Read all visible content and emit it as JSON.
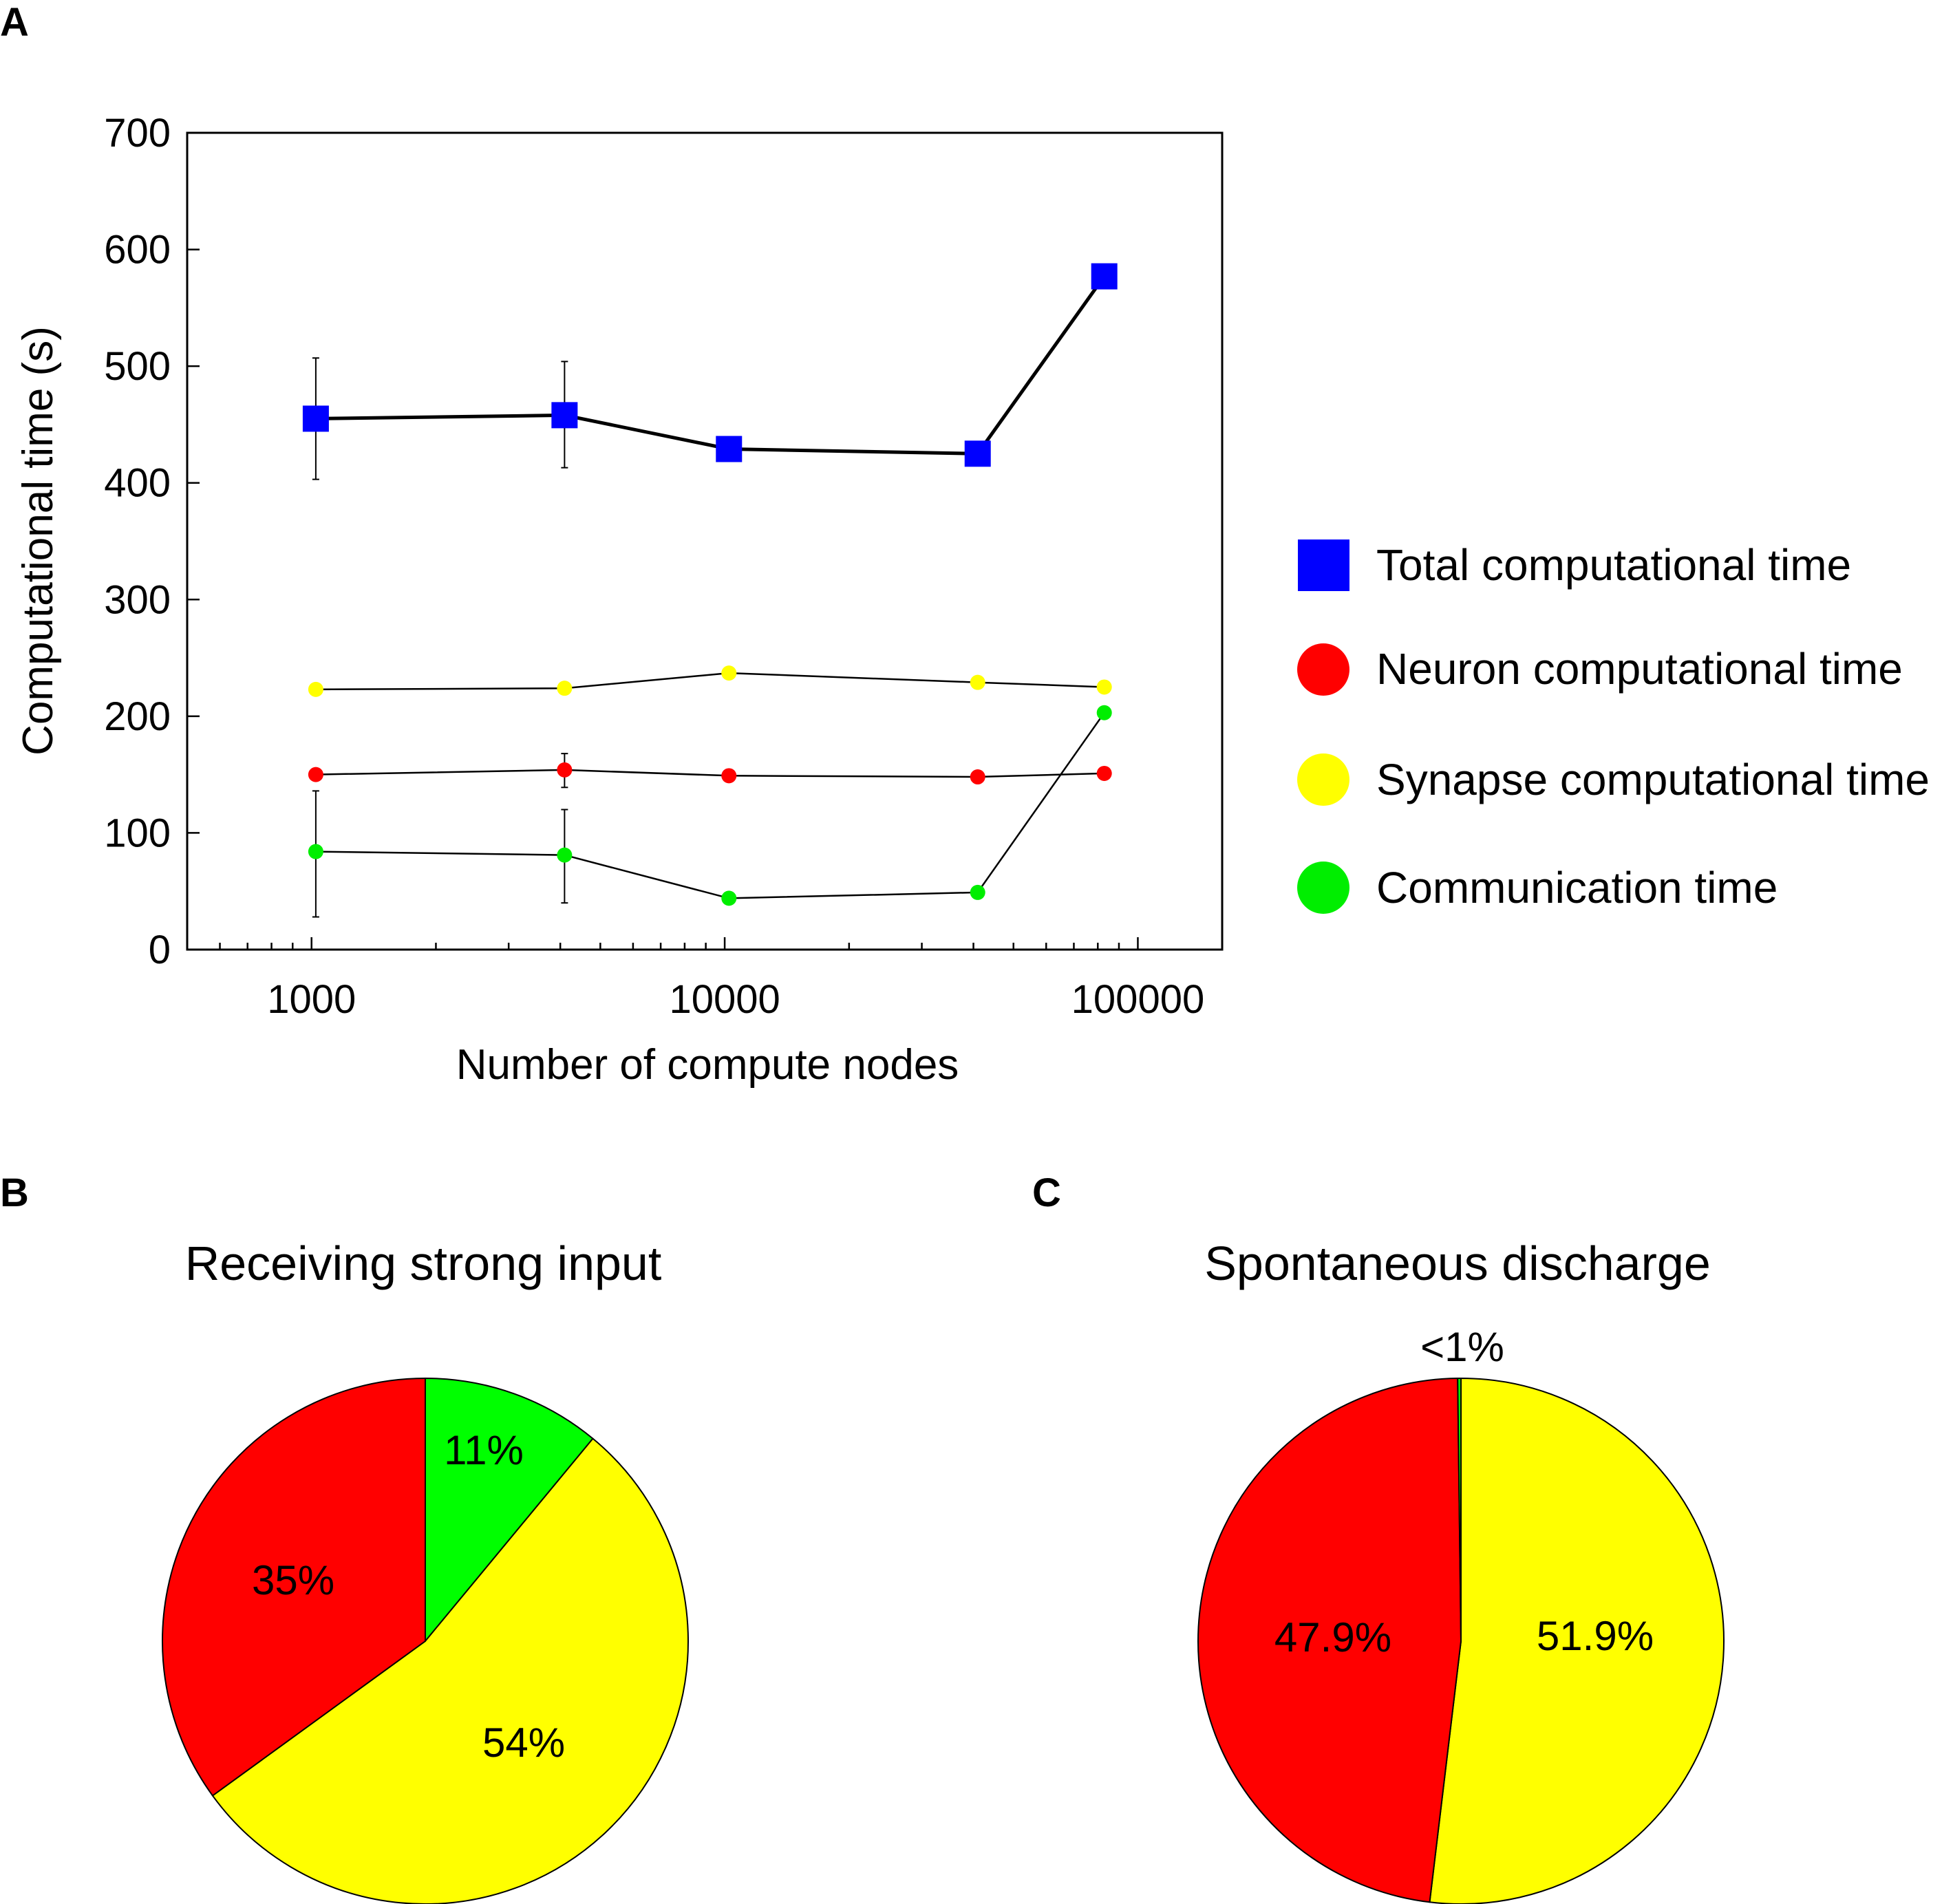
{
  "chart_data": [
    {
      "panel": "A",
      "type": "line",
      "title": "",
      "xlabel": "Number of compute nodes",
      "ylabel": "Computational time (s)",
      "xscale": "log",
      "xlim": [
        500,
        160000
      ],
      "ylim": [
        0,
        700
      ],
      "grid": false,
      "legend_position": "right",
      "xticks": [
        {
          "value": 1000,
          "label": "1000"
        },
        {
          "value": 10000,
          "label": "10000"
        },
        {
          "value": 100000,
          "label": "100000"
        }
      ],
      "yticks": [
        {
          "value": 0,
          "label": "0"
        },
        {
          "value": 100,
          "label": "100"
        },
        {
          "value": 200,
          "label": "200"
        },
        {
          "value": 300,
          "label": "300"
        },
        {
          "value": 400,
          "label": "400"
        },
        {
          "value": 500,
          "label": "500"
        },
        {
          "value": 600,
          "label": "600"
        },
        {
          "value": 700,
          "label": "700"
        }
      ],
      "x": [
        1024,
        4096,
        10240,
        40960,
        82944
      ],
      "series": [
        {
          "name": "Total computational time",
          "color": "#0000ff",
          "marker": "square",
          "values": [
            455,
            458,
            429,
            425,
            577
          ],
          "error_low": [
            403,
            413,
            null,
            null,
            null
          ],
          "error_high": [
            507,
            504,
            null,
            null,
            null
          ]
        },
        {
          "name": "Neuron computational time",
          "color": "#ff0000",
          "marker": "circle",
          "values": [
            150,
            154,
            149,
            148,
            151
          ],
          "error_low": [
            null,
            139,
            null,
            null,
            null
          ],
          "error_high": [
            null,
            168,
            null,
            null,
            null
          ]
        },
        {
          "name": "Synapse computational time",
          "color": "#ffff00",
          "marker": "circle",
          "values": [
            223,
            224,
            237,
            229,
            225
          ],
          "error_low": [
            null,
            null,
            null,
            null,
            null
          ],
          "error_high": [
            null,
            null,
            null,
            null,
            null
          ]
        },
        {
          "name": "Communication time",
          "color": "#00ee00",
          "marker": "circle",
          "values": [
            84,
            81,
            44,
            49,
            203
          ],
          "error_low": [
            28,
            40,
            null,
            null,
            null
          ],
          "error_high": [
            136,
            120,
            null,
            null,
            null
          ]
        }
      ]
    },
    {
      "panel": "B",
      "type": "pie",
      "title": "Receiving strong input",
      "slices": [
        {
          "name": "Communication time",
          "value": 11,
          "label": "11%",
          "color": "#00ff00"
        },
        {
          "name": "Synapse computational time",
          "value": 54,
          "label": "54%",
          "color": "#ffff00"
        },
        {
          "name": "Neuron computational time",
          "value": 35,
          "label": "35%",
          "color": "#ff0000"
        }
      ]
    },
    {
      "panel": "C",
      "type": "pie",
      "title": "Spontaneous discharge",
      "slices": [
        {
          "name": "Synapse computational time",
          "value": 51.9,
          "label": "51.9%",
          "color": "#ffff00"
        },
        {
          "name": "Neuron computational time",
          "value": 47.9,
          "label": "47.9%",
          "color": "#ff0000"
        },
        {
          "name": "Communication time",
          "value": 0.2,
          "label": "<1%",
          "color": "#00ff00"
        }
      ]
    }
  ]
}
